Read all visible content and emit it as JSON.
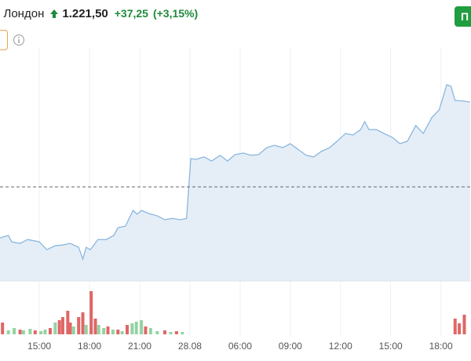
{
  "header": {
    "name": "i Лондон",
    "price": "1.221,50",
    "change": "+37,25",
    "change_pct": "(+3,15%)",
    "button": "П"
  },
  "chart_data": {
    "type": "area",
    "x": [
      -4.7,
      -3.7,
      -3.3,
      -2.3,
      -1.4,
      0,
      0.9,
      1.9,
      2.8,
      3.7,
      4.7,
      5.2,
      5.6,
      6.1,
      7.0,
      8.0,
      8.9,
      9.4,
      10.3,
      11.2,
      11.7,
      12.2,
      13.1,
      14.1,
      15.0,
      15.9,
      16.9,
      17.6,
      18.1,
      18.7,
      19.7,
      20.6,
      21.6,
      22.5,
      23.4,
      24.4,
      25.3,
      26.2,
      27.2,
      28.1,
      29.1,
      30.0,
      30.9,
      31.9,
      32.8,
      33.7,
      34.7,
      35.6,
      36.6,
      37.5,
      38.4,
      38.9,
      39.4,
      40.3,
      41.2,
      42.2,
      43.1,
      44.0,
      45.0,
      45.9,
      46.9,
      47.8,
      48.7,
      49.2,
      49.7,
      50.6,
      51.5
    ],
    "series": [
      {
        "color": "#8ab6de",
        "fill": "#e5eef7",
        "values": [
          1161.8,
          1162.9,
          1160.1,
          1159.4,
          1161.1,
          1160.1,
          1156.6,
          1158.4,
          1158.7,
          1159.4,
          1157.7,
          1152.5,
          1157.7,
          1156.6,
          1161.1,
          1161.1,
          1162.9,
          1166.3,
          1167.0,
          1173.9,
          1172.2,
          1173.9,
          1172.5,
          1171.5,
          1169.8,
          1170.4,
          1169.8,
          1170.4,
          1196.7,
          1196.3,
          1197.4,
          1195.6,
          1198.1,
          1195.6,
          1198.4,
          1199.1,
          1198.1,
          1198.4,
          1201.5,
          1202.5,
          1201.5,
          1203.2,
          1200.8,
          1198.1,
          1197.4,
          1199.8,
          1201.5,
          1204.3,
          1207.7,
          1207.0,
          1209.4,
          1212.9,
          1209.4,
          1209.4,
          1207.7,
          1206.0,
          1203.2,
          1204.3,
          1211.2,
          1207.7,
          1214.6,
          1218.1,
          1229.1,
          1228.4,
          1222.2,
          1222.0,
          1221.5
        ]
      }
    ],
    "reference_line": 1184.25,
    "xlim": [
      -4.7,
      51.6
    ],
    "ylim": [
      1142.9,
      1242.2
    ],
    "xticks": [
      {
        "value": 0,
        "label": "15:00"
      },
      {
        "value": 6,
        "label": "18:00"
      },
      {
        "value": 12,
        "label": "21:00"
      },
      {
        "value": 18,
        "label": "28.08"
      },
      {
        "value": 24,
        "label": "06:00"
      },
      {
        "value": 30,
        "label": "09:00"
      },
      {
        "value": 36,
        "label": "12:00"
      },
      {
        "value": 42,
        "label": "15:00"
      },
      {
        "value": 48,
        "label": "18:00"
      }
    ],
    "grid": true,
    "volume": {
      "ylim": [
        0,
        60
      ],
      "x": [
        -4.4,
        -3.7,
        -3.0,
        -2.3,
        -1.9,
        -1.1,
        -0.5,
        0.2,
        0.7,
        1.3,
        1.9,
        2.4,
        2.8,
        3.4,
        3.7,
        4.1,
        4.7,
        5.2,
        5.6,
        6.2,
        6.7,
        7.1,
        7.7,
        8.2,
        8.8,
        9.4,
        9.9,
        10.5,
        11.1,
        11.6,
        12.2,
        12.7,
        13.3,
        14.1,
        15.0,
        15.7,
        16.4,
        17.1,
        49.7,
        50.2,
        50.8
      ],
      "values": [
        15,
        5,
        8,
        6,
        5,
        7,
        5,
        4,
        6,
        8,
        15,
        18,
        22,
        30,
        15,
        10,
        22,
        28,
        12,
        55,
        20,
        12,
        8,
        10,
        6,
        6,
        4,
        12,
        14,
        16,
        18,
        10,
        8,
        4,
        5,
        3,
        4,
        3,
        20,
        14,
        25
      ],
      "colors": [
        "#e06666",
        "#93d3a2",
        "#93d3a2",
        "#e06666",
        "#93d3a2",
        "#93d3a2",
        "#e06666",
        "#93d3a2",
        "#93d3a2",
        "#e06666",
        "#93d3a2",
        "#e06666",
        "#e06666",
        "#e06666",
        "#e06666",
        "#93d3a2",
        "#e06666",
        "#e06666",
        "#93d3a2",
        "#e06666",
        "#e06666",
        "#93d3a2",
        "#93d3a2",
        "#e06666",
        "#93d3a2",
        "#e06666",
        "#93d3a2",
        "#e06666",
        "#93d3a2",
        "#93d3a2",
        "#93d3a2",
        "#e06666",
        "#93d3a2",
        "#93d3a2",
        "#e06666",
        "#93d3a2",
        "#e06666",
        "#93d3a2",
        "#e06666",
        "#e06666",
        "#e06666"
      ]
    }
  }
}
